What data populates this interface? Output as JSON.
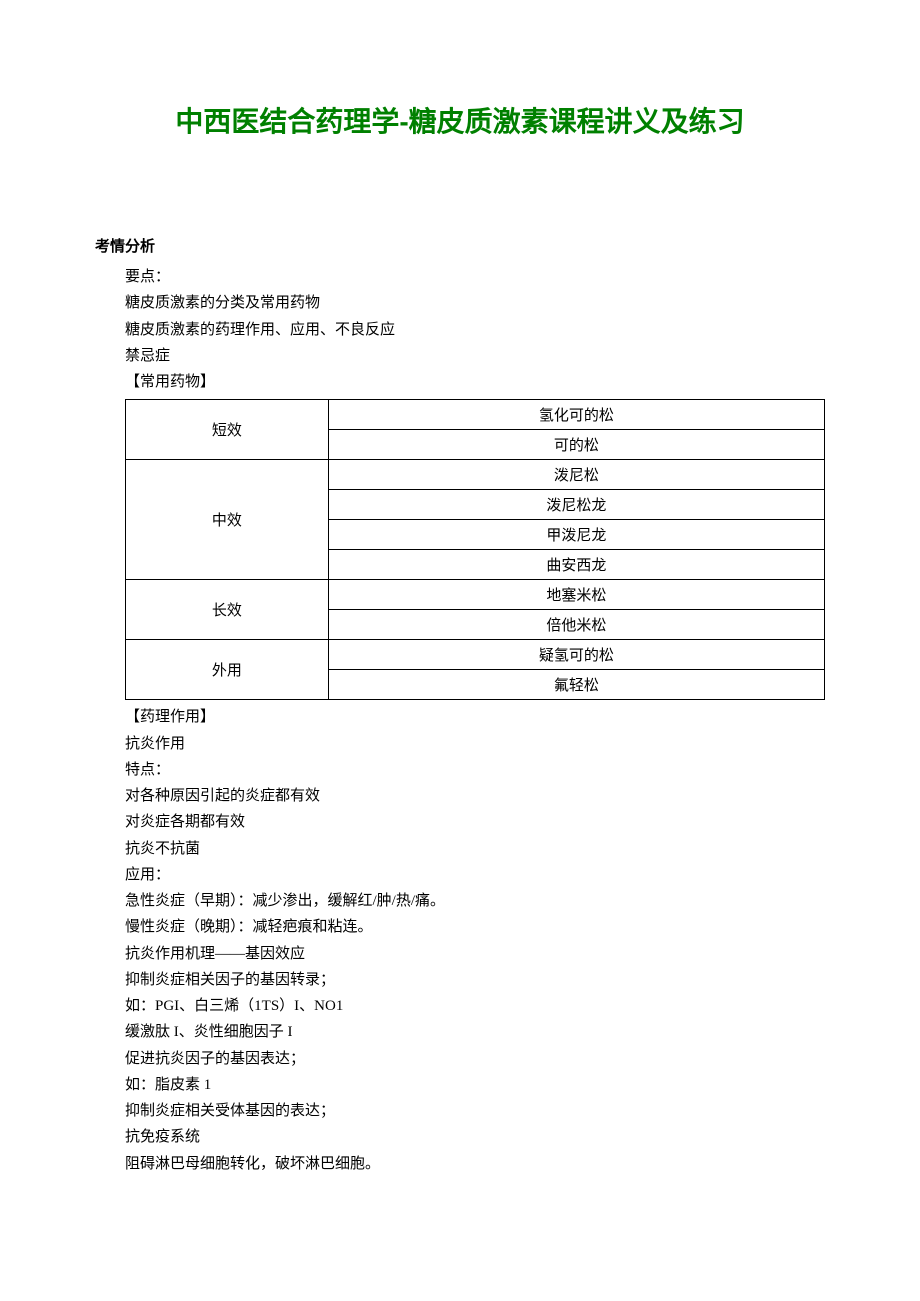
{
  "title": "中西医结合药理学-糖皮质激素课程讲义及练习",
  "section_heading": "考情分析",
  "intro": {
    "line1": "要点：",
    "line2": "糖皮质激素的分类及常用药物",
    "line3": "糖皮质激素的药理作用、应用、不良反应",
    "line4": "禁忌症",
    "line5": "【常用药物】"
  },
  "table": {
    "categories": [
      {
        "label": "短效",
        "items": [
          "氢化可的松",
          "可的松"
        ]
      },
      {
        "label": "中效",
        "items": [
          "泼尼松",
          "泼尼松龙",
          "甲泼尼龙",
          "曲安西龙"
        ]
      },
      {
        "label": "长效",
        "items": [
          "地塞米松",
          "倍他米松"
        ]
      },
      {
        "label": "外用",
        "items": [
          "疑氢可的松",
          "氟轻松"
        ]
      }
    ]
  },
  "body": {
    "l1": "【药理作用】",
    "l2": "抗炎作用",
    "l3": "特点：",
    "l4": "对各种原因引起的炎症都有效",
    "l5": "对炎症各期都有效",
    "l6": "抗炎不抗菌",
    "l7": "应用：",
    "l8": "急性炎症（早期）：减少渗出，缓解红/肿/热/痛。",
    "l9": "慢性炎症（晚期）：减轻疤痕和粘连。",
    "l10": "抗炎作用机理——基因效应",
    "l11": "抑制炎症相关因子的基因转录；",
    "l12": "如：PGI、白三烯（1TS）I、NO1",
    "l13": "缓激肽 I、炎性细胞因子 I",
    "l14": "促进抗炎因子的基因表达；",
    "l15": "如：脂皮素 1",
    "l16": "抑制炎症相关受体基因的表达；",
    "l17": "抗免疫系统",
    "l18": "阻碍淋巴母细胞转化，破坏淋巴细胞。"
  }
}
